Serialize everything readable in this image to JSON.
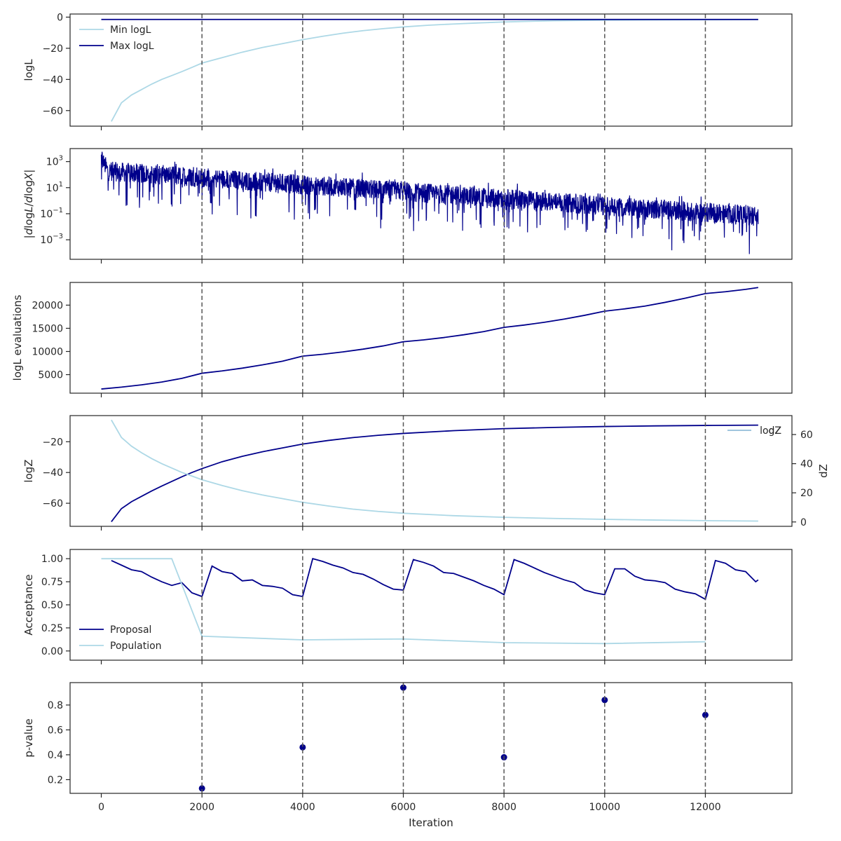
{
  "chart_data": [
    {
      "type": "line",
      "ylabel": "logL",
      "ylim": [
        -70,
        2
      ],
      "yticks": [
        0,
        -20,
        -40,
        -60
      ],
      "ytick_labels": [
        "0",
        "−20",
        "−40",
        "−60"
      ],
      "legend": "upper-left",
      "series": [
        {
          "name": "Min logL",
          "color": "#add8e6",
          "x": [
            200,
            400,
            600,
            800,
            1000,
            1200,
            1400,
            1600,
            1800,
            2000,
            2400,
            2800,
            3200,
            3600,
            4000,
            4400,
            4800,
            5200,
            5600,
            6000,
            6500,
            7000,
            7500,
            8000,
            9000,
            10000,
            11000,
            12000,
            13050
          ],
          "y": [
            -67,
            -55,
            -50,
            -46.5,
            -43,
            -40,
            -37.5,
            -35,
            -32.3,
            -29.5,
            -26,
            -22.5,
            -19.5,
            -17,
            -14.5,
            -12.3,
            -10.3,
            -8.7,
            -7.4,
            -6.3,
            -5.2,
            -4.4,
            -3.7,
            -3.1,
            -2.3,
            -2,
            -1.8,
            -1.7,
            -1.6
          ]
        },
        {
          "name": "Max logL",
          "color": "#00008b",
          "x": [
            0,
            13050
          ],
          "y": [
            -1.5,
            -1.5
          ]
        }
      ]
    },
    {
      "type": "line",
      "ylabel_parts": [
        "|",
        "d",
        "log",
        "L",
        "/",
        "d",
        "log",
        "X",
        "|"
      ],
      "yscale": "log",
      "ylim_log10": [
        -4.5,
        4.0
      ],
      "yticks_log10": [
        3,
        1,
        -1,
        -3
      ],
      "ytick_bases": [
        "10",
        "10",
        "10",
        "10"
      ],
      "ytick_exps": [
        "3",
        "1",
        "−1",
        "−3"
      ],
      "series": [
        {
          "name": "",
          "color": "#00008b",
          "x_range": [
            0,
            13050
          ],
          "start_log10": 2.3,
          "end_log10": -1.2
        }
      ]
    },
    {
      "type": "line",
      "ylabel": "logL evaluations",
      "ylim": [
        1000,
        24900
      ],
      "yticks": [
        5000,
        10000,
        15000,
        20000
      ],
      "ytick_labels": [
        "5000",
        "10000",
        "15000",
        "20000"
      ],
      "series": [
        {
          "name": "",
          "color": "#00008b",
          "x": [
            0,
            400,
            800,
            1200,
            1600,
            2000,
            2400,
            2800,
            3200,
            3600,
            4000,
            4400,
            4800,
            5200,
            5600,
            6000,
            6400,
            6800,
            7200,
            7600,
            8000,
            8400,
            8800,
            9200,
            9600,
            10000,
            10400,
            10800,
            11200,
            11600,
            12000,
            12400,
            12800,
            13050
          ],
          "y": [
            1900,
            2300,
            2800,
            3400,
            4200,
            5300,
            5800,
            6400,
            7100,
            7900,
            9000,
            9400,
            9900,
            10500,
            11200,
            12100,
            12500,
            13000,
            13600,
            14300,
            15200,
            15700,
            16300,
            17000,
            17800,
            18700,
            19200,
            19800,
            20600,
            21500,
            22500,
            22900,
            23400,
            23800
          ]
        }
      ]
    },
    {
      "type": "line",
      "ylabel": "logZ",
      "ylabel_right": "dZ",
      "ylim": [
        -75,
        -3
      ],
      "yticks": [
        -20,
        -40,
        -60
      ],
      "ytick_labels": [
        "−20",
        "−40",
        "−60"
      ],
      "ylim_right": [
        -3,
        73
      ],
      "yticks_right": [
        0,
        20,
        40,
        60
      ],
      "ytick_labels_right": [
        "0",
        "20",
        "40",
        "60"
      ],
      "legend": "upper-right",
      "series": [
        {
          "name": "logZ",
          "color": "#00008b",
          "axis": "left",
          "x": [
            200,
            400,
            600,
            800,
            1000,
            1200,
            1400,
            1600,
            1800,
            2000,
            2400,
            2800,
            3200,
            3600,
            4000,
            4500,
            5000,
            5500,
            6000,
            7000,
            8000,
            9000,
            10000,
            11000,
            12000,
            13050
          ],
          "y": [
            -72,
            -63.5,
            -59,
            -55.5,
            -52,
            -48.8,
            -45.8,
            -42.8,
            -40,
            -37.5,
            -33,
            -29.5,
            -26.5,
            -24,
            -21.5,
            -19.2,
            -17.3,
            -15.8,
            -14.6,
            -12.8,
            -11.5,
            -10.7,
            -10.1,
            -9.7,
            -9.4,
            -9.2
          ]
        },
        {
          "name": "dZ",
          "color": "#add8e6",
          "axis": "right",
          "x": [
            200,
            400,
            600,
            800,
            1000,
            1200,
            1400,
            1600,
            1800,
            2000,
            2400,
            2800,
            3200,
            3600,
            4000,
            4500,
            5000,
            5500,
            6000,
            7000,
            8000,
            9000,
            10000,
            11000,
            12000,
            13050
          ],
          "y": [
            70,
            58,
            52,
            47.5,
            43.5,
            40,
            37,
            34,
            31.5,
            29,
            25,
            21.5,
            18.5,
            16,
            13.5,
            11,
            8.8,
            7.2,
            6,
            4.3,
            3.2,
            2.4,
            1.8,
            1.3,
            0.9,
            0.6
          ]
        }
      ]
    },
    {
      "type": "line",
      "ylabel": "Acceptance",
      "ylim": [
        -0.1,
        1.1
      ],
      "yticks": [
        1.0,
        0.75,
        0.5,
        0.25,
        0.0
      ],
      "ytick_labels": [
        "1.00",
        "0.75",
        "0.50",
        "0.25",
        "0.00"
      ],
      "legend": "lower-left",
      "series": [
        {
          "name": "Proposal",
          "color": "#00008b",
          "x": [
            200,
            400,
            600,
            800,
            1000,
            1200,
            1400,
            1600,
            1800,
            2000,
            2200,
            2400,
            2600,
            2800,
            3000,
            3200,
            3400,
            3600,
            3800,
            4000,
            4200,
            4400,
            4600,
            4800,
            5000,
            5200,
            5400,
            5600,
            5800,
            6000,
            6200,
            6400,
            6600,
            6800,
            7000,
            7200,
            7400,
            7600,
            7800,
            8000,
            8200,
            8400,
            8600,
            8800,
            9000,
            9200,
            9400,
            9600,
            9800,
            10000,
            10200,
            10400,
            10600,
            10800,
            11000,
            11200,
            11400,
            11600,
            11800,
            12000,
            12200,
            12400,
            12600,
            12800,
            13000,
            13050
          ],
          "y": [
            0.98,
            0.93,
            0.88,
            0.86,
            0.8,
            0.75,
            0.71,
            0.74,
            0.63,
            0.59,
            0.92,
            0.86,
            0.84,
            0.76,
            0.77,
            0.71,
            0.7,
            0.68,
            0.61,
            0.59,
            1.0,
            0.97,
            0.93,
            0.9,
            0.85,
            0.83,
            0.78,
            0.72,
            0.67,
            0.66,
            0.99,
            0.96,
            0.92,
            0.85,
            0.84,
            0.8,
            0.76,
            0.71,
            0.67,
            0.61,
            0.99,
            0.95,
            0.9,
            0.85,
            0.81,
            0.77,
            0.74,
            0.66,
            0.63,
            0.61,
            0.89,
            0.89,
            0.81,
            0.77,
            0.76,
            0.74,
            0.67,
            0.64,
            0.62,
            0.56,
            0.98,
            0.95,
            0.88,
            0.86,
            0.75,
            0.77
          ]
        },
        {
          "name": "Population",
          "color": "#add8e6",
          "x": [
            0,
            1400,
            2000,
            4000,
            6000,
            8000,
            10000,
            12000
          ],
          "y": [
            1.0,
            1.0,
            0.16,
            0.12,
            0.13,
            0.09,
            0.08,
            0.1
          ]
        }
      ]
    },
    {
      "type": "scatter",
      "ylabel": "p-value",
      "xlabel": "Iteration",
      "ylim": [
        0.09,
        0.98
      ],
      "yticks": [
        0.8,
        0.6,
        0.4,
        0.2
      ],
      "ytick_labels": [
        "0.8",
        "0.6",
        "0.4",
        "0.2"
      ],
      "series": [
        {
          "name": "",
          "color": "#00008b",
          "x": [
            2000,
            4000,
            6000,
            8000,
            10000,
            12000
          ],
          "y": [
            0.13,
            0.46,
            0.94,
            0.38,
            0.84,
            0.72
          ]
        }
      ]
    }
  ],
  "shared": {
    "xlim": [
      -620,
      13720
    ],
    "xticks": [
      0,
      2000,
      4000,
      6000,
      8000,
      10000,
      12000
    ],
    "xtick_labels": [
      "0",
      "2000",
      "4000",
      "6000",
      "8000",
      "10000",
      "12000"
    ],
    "vlines": [
      2000,
      4000,
      6000,
      8000,
      10000,
      12000
    ],
    "vline_color": "#555555",
    "axis_color": "#262626"
  }
}
